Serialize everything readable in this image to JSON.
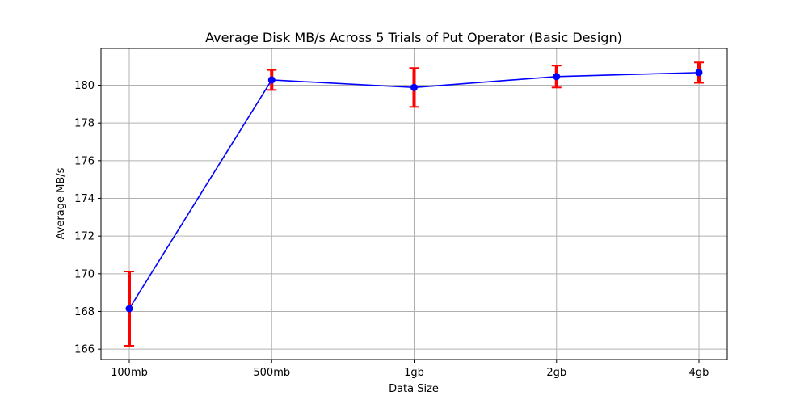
{
  "chart_data": {
    "type": "line",
    "title": "Average Disk MB/s Across 5 Trials of Put Operator (Basic Design)",
    "xlabel": "Data Size",
    "ylabel": "Average MB/s",
    "categories": [
      "100mb",
      "500mb",
      "1gb",
      "2gb",
      "4gb"
    ],
    "series": [
      {
        "values": [
          168.15,
          180.28,
          179.88,
          180.46,
          180.67
        ],
        "errors": [
          1.97,
          0.53,
          1.03,
          0.58,
          0.54
        ],
        "line_color": "#0000ff",
        "marker_color": "#0000ff",
        "error_color": "#ff0000"
      }
    ],
    "ylim": [
      165.45,
      181.95
    ],
    "yticks": [
      166,
      168,
      170,
      172,
      174,
      176,
      178,
      180
    ],
    "grid": true
  }
}
